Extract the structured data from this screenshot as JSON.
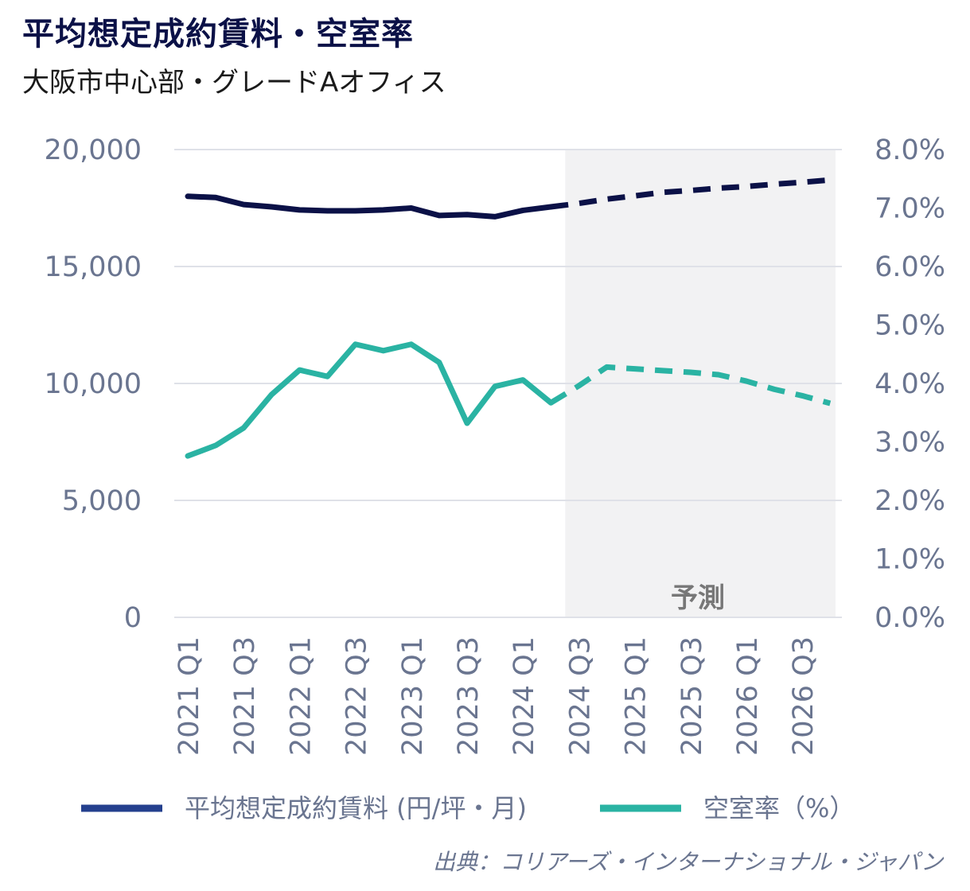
{
  "header": {
    "title": "平均想定成約賃料・空室率",
    "subtitle": "大阪市中心部・グレードAオフィス"
  },
  "source": "出典：コリアーズ・インターナショナル・ジャパン",
  "colors": {
    "rent_line": "#0b1147",
    "vacancy_line": "#2ab3a3",
    "legend_rent": "#24408e",
    "forecast_band": "#f2f2f3",
    "grid": "#dfe1e8",
    "tick_text": "#6a7590"
  },
  "chart_data": {
    "type": "line",
    "title": "平均想定成約賃料・空室率",
    "subtitle": "大阪市中心部・グレードAオフィス",
    "categories": [
      "2021 Q1",
      "2021 Q2",
      "2021 Q3",
      "2021 Q4",
      "2022 Q1",
      "2022 Q2",
      "2022 Q3",
      "2022 Q4",
      "2023 Q1",
      "2023 Q2",
      "2023 Q3",
      "2023 Q4",
      "2024 Q1",
      "2024 Q2",
      "2024 Q3",
      "2024 Q4",
      "2025 Q1",
      "2025 Q2",
      "2025 Q3",
      "2025 Q4",
      "2026 Q1",
      "2026 Q2",
      "2026 Q3",
      "2026 Q4"
    ],
    "x_tick_labels": [
      "2021 Q1",
      "2021 Q3",
      "2022 Q1",
      "2022 Q3",
      "2023 Q1",
      "2023 Q3",
      "2024 Q1",
      "2024 Q3",
      "2025 Q1",
      "2025 Q3",
      "2026 Q1",
      "2026 Q3"
    ],
    "forecast_start_index": 14,
    "forecast_label": "予測",
    "y_left": {
      "min": 0,
      "max": 20000,
      "ticks": [
        0,
        5000,
        10000,
        15000,
        20000
      ],
      "tick_labels": [
        "0",
        "5,000",
        "10,000",
        "15,000",
        "20,000"
      ]
    },
    "y_right": {
      "min": 0,
      "max": 8.0,
      "ticks": [
        0,
        1,
        2,
        3,
        4,
        5,
        6,
        7,
        8
      ],
      "tick_labels": [
        "0.0%",
        "1.0%",
        "2.0%",
        "3.0%",
        "4.0%",
        "5.0%",
        "6.0%",
        "7.0%",
        "8.0%"
      ]
    },
    "grid": true,
    "series": [
      {
        "name": "平均想定成約賃料 (円/坪・月)",
        "axis": "left",
        "values": [
          18000,
          17950,
          17650,
          17550,
          17420,
          17380,
          17380,
          17420,
          17500,
          17180,
          17220,
          17130,
          17400,
          17550,
          17700,
          17880,
          18020,
          18170,
          18250,
          18350,
          18420,
          18520,
          18600,
          18700
        ]
      },
      {
        "name": "空室率（%）",
        "axis": "right",
        "values": [
          2.76,
          2.94,
          3.24,
          3.81,
          4.23,
          4.12,
          4.67,
          4.56,
          4.67,
          4.36,
          3.32,
          3.95,
          4.06,
          3.67,
          3.96,
          4.28,
          4.25,
          4.22,
          4.19,
          4.15,
          4.04,
          3.9,
          3.79,
          3.66
        ]
      }
    ],
    "legend": {
      "position": "bottom",
      "items": [
        {
          "label": "平均想定成約賃料 (円/坪・月)",
          "color": "#24408e"
        },
        {
          "label": "空室率（%）",
          "color": "#2ab3a3"
        }
      ]
    }
  }
}
